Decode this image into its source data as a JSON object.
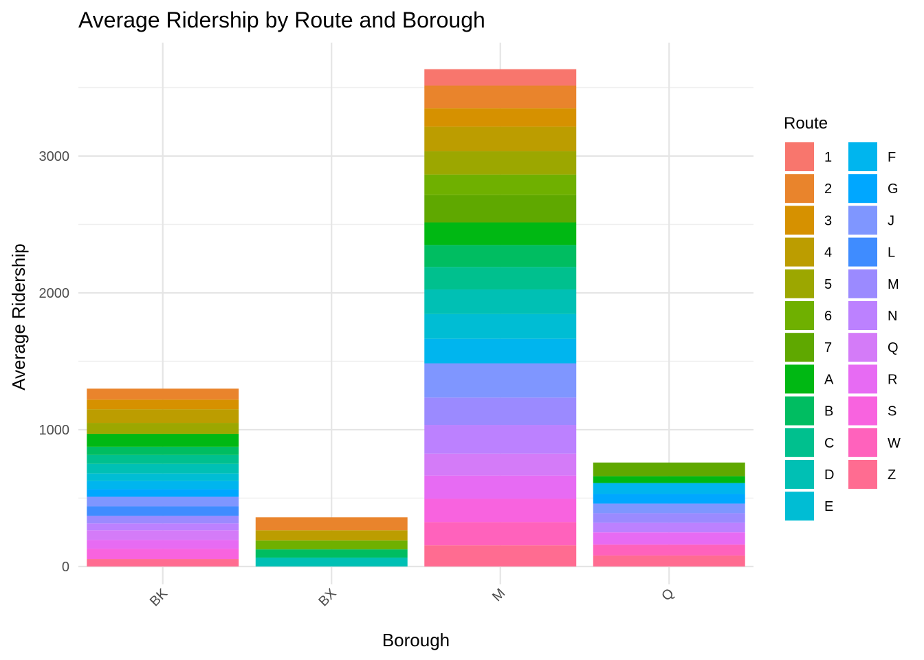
{
  "chart_data": {
    "type": "bar",
    "stacked": true,
    "title": "Average Ridership by Route and Borough",
    "xlabel": "Borough",
    "ylabel": "Average Ridership",
    "categories": [
      "BK",
      "BX",
      "M",
      "Q"
    ],
    "ylim": [
      0,
      3700
    ],
    "yticks": [
      0,
      1000,
      2000,
      3000
    ],
    "grid": true,
    "legend": {
      "title": "Route",
      "position": "right",
      "columns": 2
    },
    "series": [
      {
        "name": "1",
        "color": "#F8766D",
        "values": [
          0,
          0,
          120,
          0
        ]
      },
      {
        "name": "2",
        "color": "#E9842C",
        "values": [
          80,
          95,
          165,
          0
        ]
      },
      {
        "name": "3",
        "color": "#D69100",
        "values": [
          70,
          0,
          135,
          0
        ]
      },
      {
        "name": "4",
        "color": "#BC9D00",
        "values": [
          100,
          75,
          180,
          0
        ]
      },
      {
        "name": "5",
        "color": "#9CA700",
        "values": [
          80,
          0,
          170,
          0
        ]
      },
      {
        "name": "6",
        "color": "#6FB000",
        "values": [
          0,
          65,
          150,
          0
        ]
      },
      {
        "name": "7",
        "color": "#5FA800",
        "values": [
          0,
          0,
          200,
          100
        ]
      },
      {
        "name": "A",
        "color": "#00B813",
        "values": [
          95,
          0,
          165,
          50
        ]
      },
      {
        "name": "B",
        "color": "#00BD61",
        "values": [
          60,
          60,
          160,
          0
        ]
      },
      {
        "name": "C",
        "color": "#00C08E",
        "values": [
          65,
          0,
          165,
          0
        ]
      },
      {
        "name": "D",
        "color": "#00C0B4",
        "values": [
          70,
          65,
          180,
          0
        ]
      },
      {
        "name": "E",
        "color": "#00BDD4",
        "values": [
          55,
          0,
          180,
          0
        ]
      },
      {
        "name": "F",
        "color": "#00B5EE",
        "values": [
          60,
          0,
          180,
          80
        ]
      },
      {
        "name": "G",
        "color": "#00A7FF",
        "values": [
          55,
          0,
          0,
          70
        ]
      },
      {
        "name": "J",
        "color": "#7F96FF",
        "values": [
          70,
          0,
          250,
          70
        ]
      },
      {
        "name": "L",
        "color": "#3F8CFF",
        "values": [
          70,
          0,
          0,
          0
        ]
      },
      {
        "name": "M",
        "color": "#9B8AFF",
        "values": [
          55,
          0,
          200,
          70
        ]
      },
      {
        "name": "N",
        "color": "#BC81FF",
        "values": [
          50,
          0,
          210,
          70
        ]
      },
      {
        "name": "Q",
        "color": "#D47BF8",
        "values": [
          70,
          0,
          160,
          0
        ]
      },
      {
        "name": "R",
        "color": "#E76BF3",
        "values": [
          65,
          0,
          170,
          90
        ]
      },
      {
        "name": "S",
        "color": "#F863DF",
        "values": [
          75,
          0,
          170,
          0
        ]
      },
      {
        "name": "W",
        "color": "#FF62BC",
        "values": [
          0,
          0,
          170,
          80
        ]
      },
      {
        "name": "Z",
        "color": "#FF6C91",
        "values": [
          55,
          0,
          155,
          80
        ]
      }
    ]
  }
}
